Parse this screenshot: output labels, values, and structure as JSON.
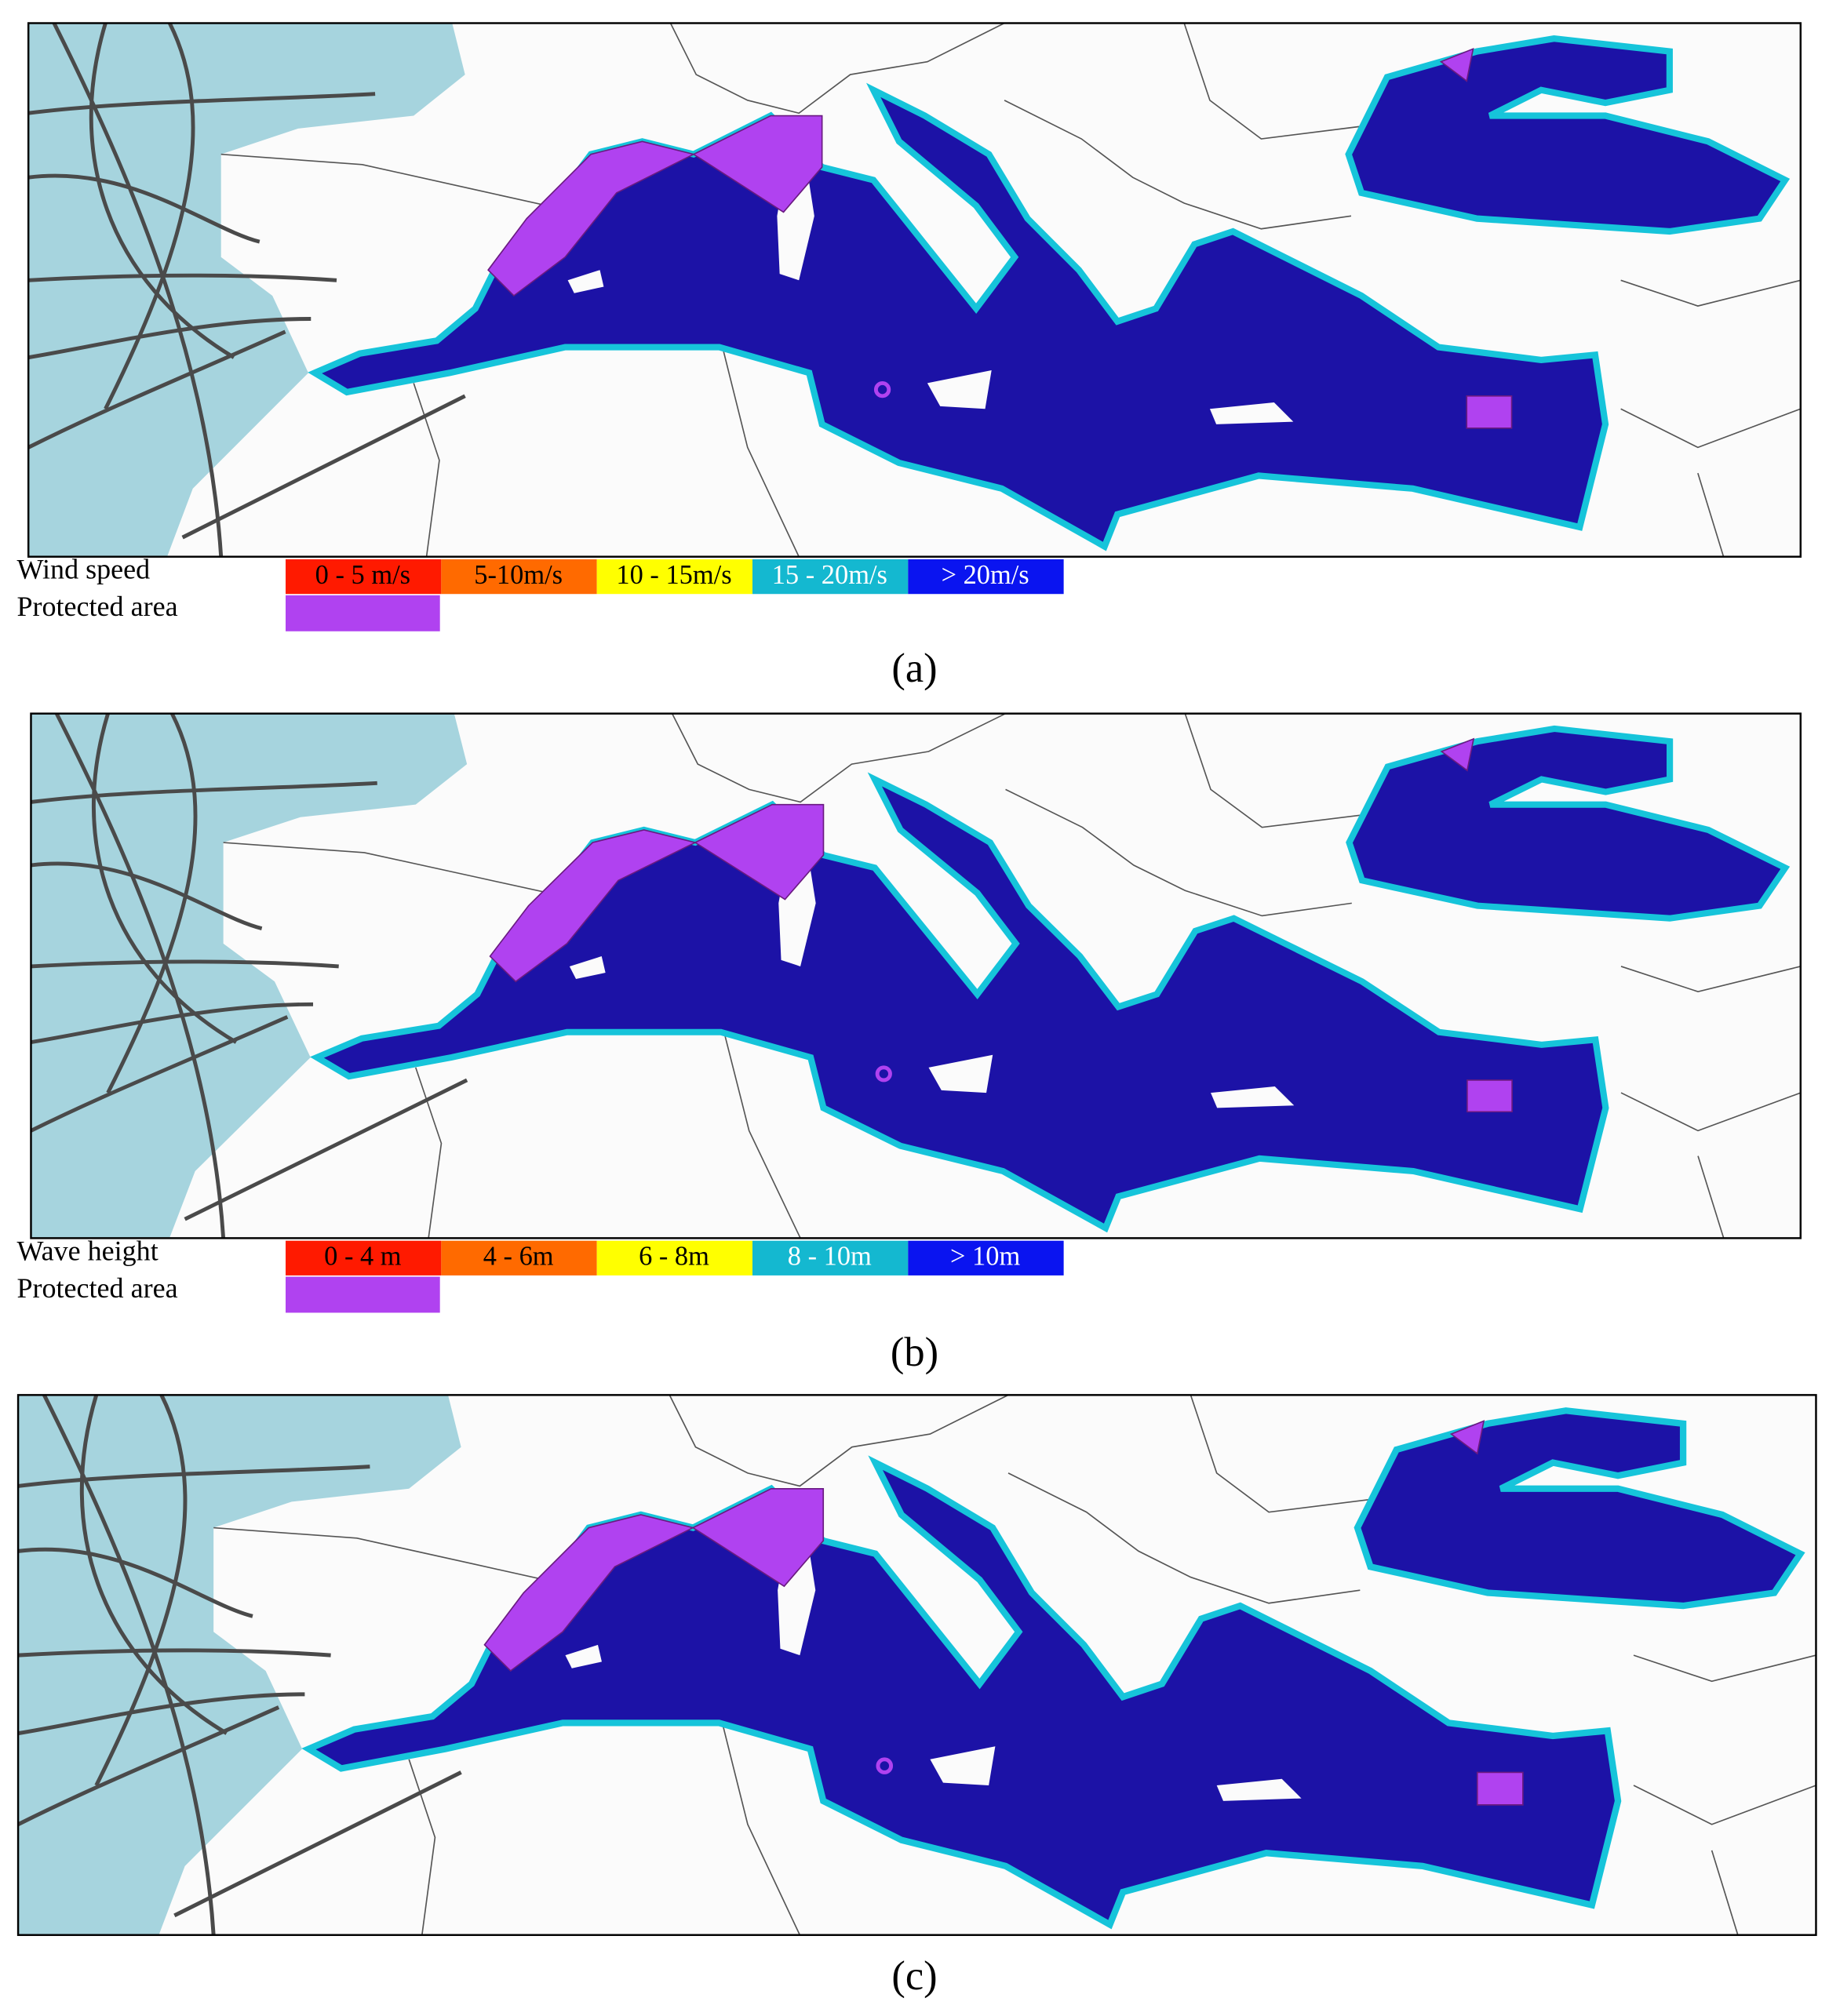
{
  "panels": [
    {
      "label": "(a)",
      "legend": {
        "title": "Wind speed",
        "protected_title": "Protected area",
        "protected_color": "#b042f0",
        "classes": [
          {
            "label": "0 - 5 m/s",
            "color": "#ff1a00",
            "text_color": "#000000"
          },
          {
            "label": "5-10m/s",
            "color": "#ff6a00",
            "text_color": "#000000"
          },
          {
            "label": "10 - 15m/s",
            "color": "#ffff00",
            "text_color": "#000000"
          },
          {
            "label": "15 - 20m/s",
            "color": "#14b8d0",
            "text_color": "#ffffff"
          },
          {
            "label": "> 20m/s",
            "color": "#0a14f0",
            "text_color": "#ffffff"
          }
        ]
      }
    },
    {
      "label": "(b)",
      "legend": {
        "title": "Wave height",
        "protected_title": "Protected area",
        "protected_color": "#b042f0",
        "classes": [
          {
            "label": "0 - 4 m",
            "color": "#ff1a00",
            "text_color": "#000000"
          },
          {
            "label": "4 - 6m",
            "color": "#ff6a00",
            "text_color": "#000000"
          },
          {
            "label": "6 - 8m",
            "color": "#ffff00",
            "text_color": "#000000"
          },
          {
            "label": "8 - 10m",
            "color": "#14b8d0",
            "text_color": "#ffffff"
          },
          {
            "label": "> 10m",
            "color": "#0a14f0",
            "text_color": "#ffffff"
          }
        ]
      }
    },
    {
      "label": "(c)"
    }
  ]
}
